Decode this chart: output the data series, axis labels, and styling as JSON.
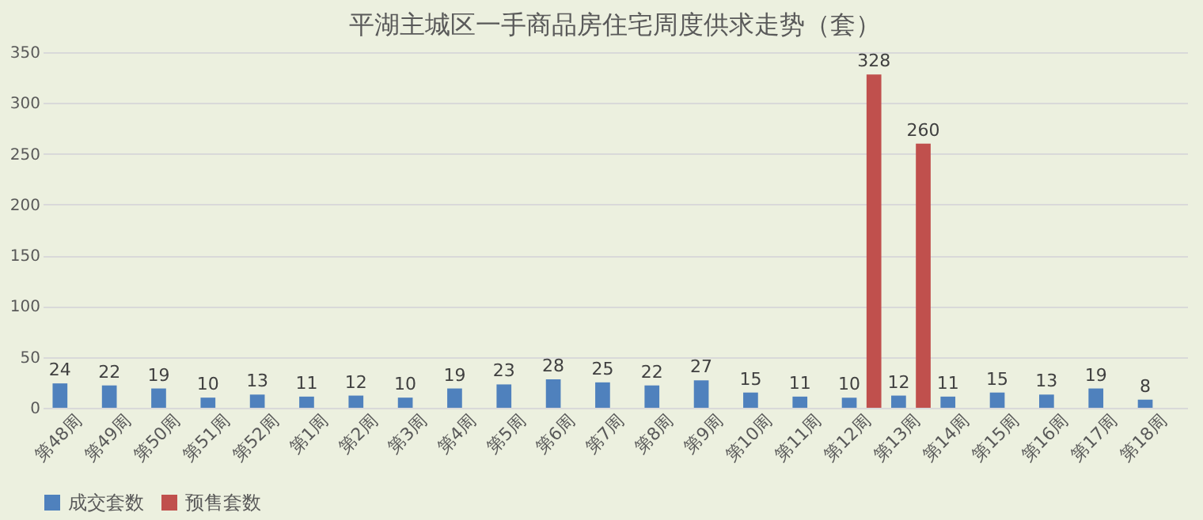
{
  "chart_data": {
    "type": "bar",
    "title": "平湖主城区一手商品房住宅周度供求走势（套）",
    "categories": [
      "第48周",
      "第49周",
      "第50周",
      "第51周",
      "第52周",
      "第1周",
      "第2周",
      "第3周",
      "第4周",
      "第5周",
      "第6周",
      "第7周",
      "第8周",
      "第9周",
      "第10周",
      "第11周",
      "第12周",
      "第13周",
      "第14周",
      "第15周",
      "第16周",
      "第17周",
      "第18周"
    ],
    "series": [
      {
        "name": "成交套数",
        "color": "#4f81bd",
        "values": [
          24,
          22,
          19,
          10,
          13,
          11,
          12,
          10,
          19,
          23,
          28,
          25,
          22,
          27,
          15,
          11,
          10,
          12,
          11,
          15,
          13,
          19,
          8
        ]
      },
      {
        "name": "预售套数",
        "color": "#c0504d",
        "values": [
          null,
          null,
          null,
          null,
          null,
          null,
          null,
          null,
          null,
          null,
          null,
          null,
          null,
          null,
          null,
          null,
          328,
          260,
          null,
          null,
          null,
          null,
          null
        ]
      }
    ],
    "ylim": [
      0,
      350
    ],
    "yticks": [
      0,
      50,
      100,
      150,
      200,
      250,
      300,
      350
    ],
    "grid": "y",
    "legend": "bottom",
    "data_labels": true
  }
}
